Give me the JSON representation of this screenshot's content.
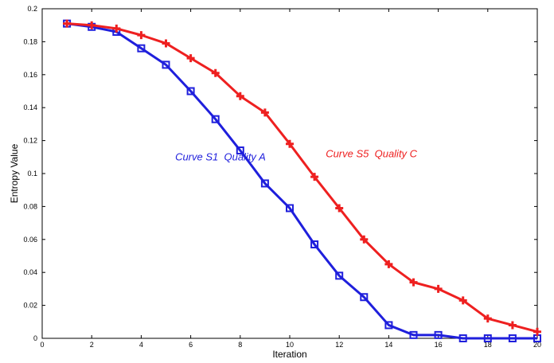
{
  "chart_data": {
    "type": "line",
    "xlabel": "Iteration",
    "ylabel": "Entropy Value",
    "xlim": [
      0,
      20
    ],
    "ylim": [
      0,
      0.2
    ],
    "xticks": [
      "0",
      "2",
      "4",
      "6",
      "8",
      "10",
      "12",
      "14",
      "16",
      "18",
      "20"
    ],
    "yticks": [
      "0",
      "0.02",
      "0.04",
      "0.06",
      "0.08",
      "0.1",
      "0.12",
      "0.14",
      "0.16",
      "0.18",
      "0.2"
    ],
    "grid": false,
    "legend": "none",
    "x": [
      1,
      2,
      3,
      4,
      5,
      6,
      7,
      8,
      9,
      10,
      11,
      12,
      13,
      14,
      15,
      16,
      17,
      18,
      19,
      20
    ],
    "series": [
      {
        "name": "",
        "color": "#1f1fdc",
        "marker": "square",
        "values": [
          0.191,
          0.189,
          0.186,
          0.176,
          0.166,
          0.15,
          0.133,
          0.114,
          0.094,
          0.079,
          0.057,
          0.038,
          0.025,
          0.008,
          0.002,
          0.002,
          0.0,
          0.0,
          0.0,
          0.0
        ]
      },
      {
        "name": "",
        "color": "#ee2020",
        "marker": "plus",
        "values": [
          0.191,
          0.19,
          0.188,
          0.184,
          0.179,
          0.17,
          0.161,
          0.147,
          0.137,
          0.118,
          0.098,
          0.079,
          0.06,
          0.045,
          0.034,
          0.03,
          0.023,
          0.012,
          0.008,
          0.004
        ]
      }
    ],
    "annotations": [
      {
        "text": "Curve S1  Quality A",
        "color": "#1f1fdc",
        "x": 7.2,
        "y": 0.108
      },
      {
        "text": "Curve S5  Quality C",
        "color": "#ee2020",
        "x": 13.3,
        "y": 0.11
      }
    ]
  }
}
